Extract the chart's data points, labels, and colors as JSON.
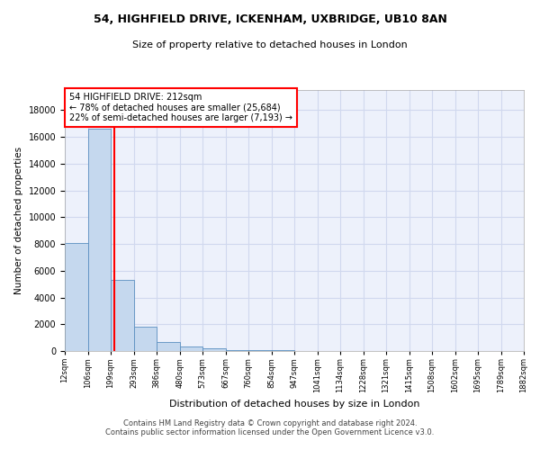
{
  "title1": "54, HIGHFIELD DRIVE, ICKENHAM, UXBRIDGE, UB10 8AN",
  "title2": "Size of property relative to detached houses in London",
  "xlabel": "Distribution of detached houses by size in London",
  "ylabel": "Number of detached properties",
  "footer1": "Contains HM Land Registry data © Crown copyright and database right 2024.",
  "footer2": "Contains public sector information licensed under the Open Government Licence v3.0.",
  "bin_edges": [
    12,
    106,
    199,
    293,
    386,
    480,
    573,
    667,
    760,
    854,
    947,
    1041,
    1134,
    1228,
    1321,
    1415,
    1508,
    1602,
    1695,
    1789,
    1882
  ],
  "bar_heights": [
    8050,
    16600,
    5300,
    1800,
    650,
    350,
    200,
    100,
    60,
    40,
    25,
    20,
    15,
    12,
    10,
    8,
    6,
    5,
    4,
    3
  ],
  "bar_color": "#c5d8ee",
  "bar_edge_color": "#5a8fc0",
  "vline_x": 212,
  "vline_color": "red",
  "annotation_text": "54 HIGHFIELD DRIVE: 212sqm\n← 78% of detached houses are smaller (25,684)\n22% of semi-detached houses are larger (7,193) →",
  "annotation_box_color": "white",
  "annotation_box_edge_color": "red",
  "xlim_left": 12,
  "xlim_right": 1882,
  "ylim_top": 19500,
  "background_color": "#edf1fb",
  "grid_color": "#d0d8ee",
  "tick_labels": [
    "12sqm",
    "106sqm",
    "199sqm",
    "293sqm",
    "386sqm",
    "480sqm",
    "573sqm",
    "667sqm",
    "760sqm",
    "854sqm",
    "947sqm",
    "1041sqm",
    "1134sqm",
    "1228sqm",
    "1321sqm",
    "1415sqm",
    "1508sqm",
    "1602sqm",
    "1695sqm",
    "1789sqm",
    "1882sqm"
  ],
  "yticks": [
    0,
    2000,
    4000,
    6000,
    8000,
    10000,
    12000,
    14000,
    16000,
    18000
  ]
}
